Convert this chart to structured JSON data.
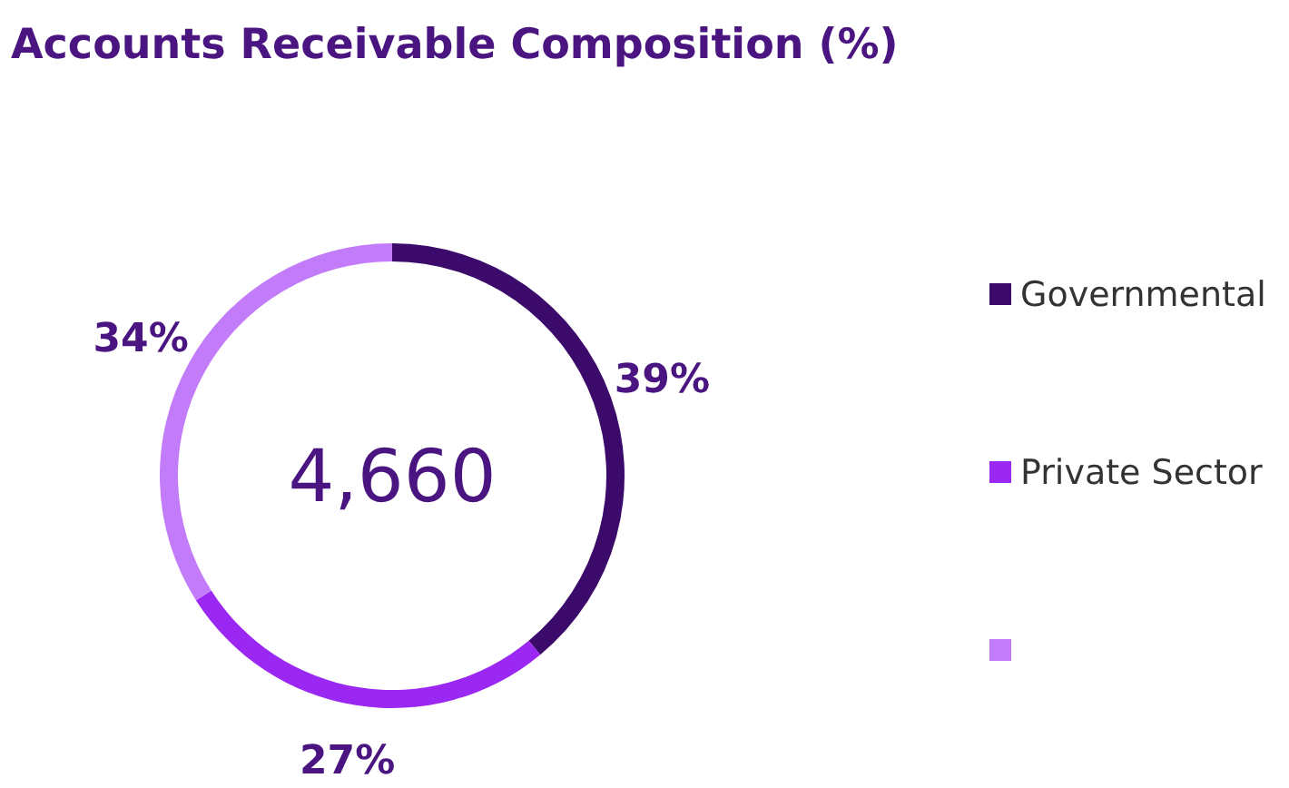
{
  "chart_data": {
    "type": "donut",
    "title": "Accounts Receivable Composition (%)",
    "categories": [
      "Governmental",
      "Private Sector",
      null
    ],
    "values": [
      39,
      27,
      34
    ],
    "colors": [
      "#3c0a6b",
      "#9b27f2",
      "#c27cfa"
    ],
    "annotations": [
      "4,660"
    ],
    "legend": "right",
    "value_labels": [
      "39%",
      "27%",
      "34%"
    ]
  }
}
